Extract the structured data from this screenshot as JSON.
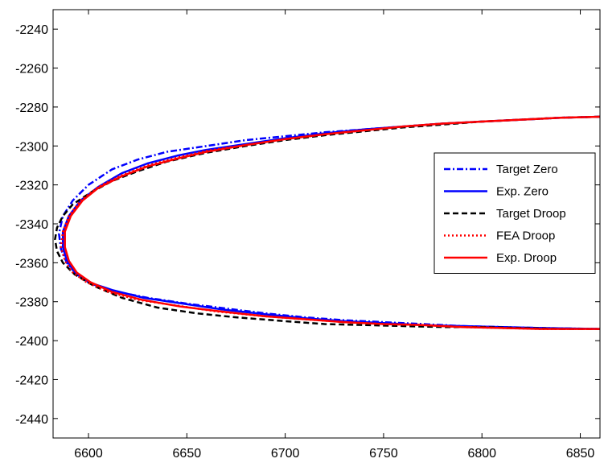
{
  "chart_data": {
    "type": "line",
    "title": "",
    "xlabel": "",
    "ylabel": "",
    "xlim": [
      6582,
      6860
    ],
    "ylim": [
      -2450,
      -2230
    ],
    "xticks": [
      6600,
      6650,
      6700,
      6750,
      6800,
      6850
    ],
    "yticks": [
      -2440,
      -2420,
      -2400,
      -2380,
      -2360,
      -2340,
      -2320,
      -2300,
      -2280,
      -2260,
      -2240
    ],
    "grid": false,
    "legend_position": "right",
    "series": [
      {
        "name": "Target Zero",
        "color": "#0000ff",
        "style": "dashdot",
        "x": [
          6860,
          6840,
          6820,
          6800,
          6780,
          6760,
          6740,
          6720,
          6700,
          6680,
          6660,
          6640,
          6625,
          6612,
          6600,
          6592,
          6587,
          6585,
          6586,
          6589,
          6594,
          6602,
          6615,
          6630,
          6650,
          6670,
          6690,
          6710,
          6730,
          6750,
          6770,
          6790,
          6810,
          6830,
          6860
        ],
        "y": [
          -2285,
          -2285.5,
          -2286.5,
          -2287.5,
          -2288.5,
          -2290,
          -2291.5,
          -2293,
          -2295,
          -2297,
          -2300,
          -2303,
          -2307,
          -2312,
          -2320,
          -2328,
          -2336,
          -2345,
          -2353,
          -2360,
          -2366,
          -2371,
          -2375,
          -2378,
          -2381,
          -2383.5,
          -2386,
          -2388,
          -2389.5,
          -2390.5,
          -2391.5,
          -2392.5,
          -2393,
          -2393.5,
          -2394
        ]
      },
      {
        "name": "Exp. Zero",
        "color": "#0000ff",
        "style": "solid",
        "x": [
          6860,
          6840,
          6820,
          6800,
          6780,
          6760,
          6740,
          6720,
          6700,
          6680,
          6660,
          6645,
          6630,
          6617,
          6605,
          6596,
          6590,
          6587,
          6587,
          6589,
          6593,
          6600,
          6612,
          6628,
          6648,
          6668,
          6690,
          6710,
          6730,
          6750,
          6770,
          6790,
          6810,
          6830,
          6860
        ],
        "y": [
          -2285,
          -2285.5,
          -2286.5,
          -2287.5,
          -2288.5,
          -2290,
          -2291.5,
          -2293.5,
          -2296,
          -2299,
          -2302,
          -2305,
          -2309,
          -2314,
          -2321,
          -2328,
          -2336,
          -2344,
          -2352,
          -2359,
          -2365,
          -2370,
          -2374,
          -2378,
          -2381,
          -2384,
          -2386.5,
          -2388.5,
          -2390,
          -2391,
          -2392,
          -2392.5,
          -2393,
          -2393.5,
          -2394
        ]
      },
      {
        "name": "Target Droop",
        "color": "#000000",
        "style": "dashed",
        "x": [
          6860,
          6840,
          6820,
          6800,
          6780,
          6760,
          6740,
          6720,
          6700,
          6680,
          6660,
          6640,
          6625,
          6612,
          6601,
          6592,
          6587,
          6584,
          6583,
          6584,
          6587,
          6593,
          6603,
          6617,
          6635,
          6655,
          6675,
          6700,
          6720,
          6740,
          6760,
          6780,
          6800,
          6820,
          6840,
          6860
        ],
        "y": [
          -2285,
          -2285.5,
          -2286.5,
          -2287.5,
          -2289,
          -2290.5,
          -2292.5,
          -2294.5,
          -2297,
          -2300,
          -2303.5,
          -2308,
          -2313,
          -2318,
          -2324,
          -2330,
          -2336,
          -2342,
          -2348,
          -2354,
          -2360,
          -2366,
          -2372,
          -2378,
          -2383,
          -2386,
          -2388,
          -2390,
          -2391.5,
          -2392,
          -2392.5,
          -2393,
          -2393,
          -2393.5,
          -2394,
          -2394
        ]
      },
      {
        "name": "FEA Droop",
        "color": "#ff0000",
        "style": "dotted",
        "x": [
          6860,
          6840,
          6820,
          6800,
          6780,
          6760,
          6740,
          6720,
          6700,
          6680,
          6660,
          6645,
          6630,
          6617,
          6605,
          6596,
          6590,
          6587,
          6586,
          6588,
          6592,
          6599,
          6610,
          6625,
          6645,
          6665,
          6690,
          6710,
          6730,
          6750,
          6770,
          6790,
          6810,
          6830,
          6860
        ],
        "y": [
          -2285,
          -2285.5,
          -2286.5,
          -2287.5,
          -2288.5,
          -2290,
          -2292,
          -2294,
          -2296.5,
          -2299.5,
          -2302.5,
          -2306,
          -2310,
          -2315,
          -2321,
          -2328,
          -2336,
          -2344,
          -2352,
          -2359,
          -2365,
          -2370,
          -2375,
          -2379,
          -2382,
          -2385,
          -2387.5,
          -2389,
          -2390.5,
          -2391.5,
          -2392,
          -2393,
          -2393.5,
          -2394,
          -2394
        ]
      },
      {
        "name": "Exp. Droop",
        "color": "#ff0000",
        "style": "solid",
        "x": [
          6860,
          6840,
          6820,
          6800,
          6780,
          6760,
          6740,
          6720,
          6700,
          6680,
          6660,
          6645,
          6630,
          6617,
          6605,
          6597,
          6591,
          6588,
          6588,
          6590,
          6594,
          6601,
          6612,
          6627,
          6647,
          6667,
          6690,
          6710,
          6730,
          6750,
          6770,
          6790,
          6810,
          6830,
          6860
        ],
        "y": [
          -2285,
          -2285.5,
          -2286.5,
          -2287.5,
          -2288.5,
          -2290,
          -2292,
          -2294,
          -2296.5,
          -2299.5,
          -2303,
          -2306.5,
          -2310.5,
          -2315.5,
          -2321.5,
          -2328,
          -2336,
          -2344,
          -2352,
          -2359,
          -2365,
          -2370,
          -2375,
          -2379,
          -2382.5,
          -2385,
          -2387.5,
          -2389,
          -2390.5,
          -2391.5,
          -2392,
          -2393,
          -2393.5,
          -2394,
          -2394
        ]
      }
    ]
  }
}
